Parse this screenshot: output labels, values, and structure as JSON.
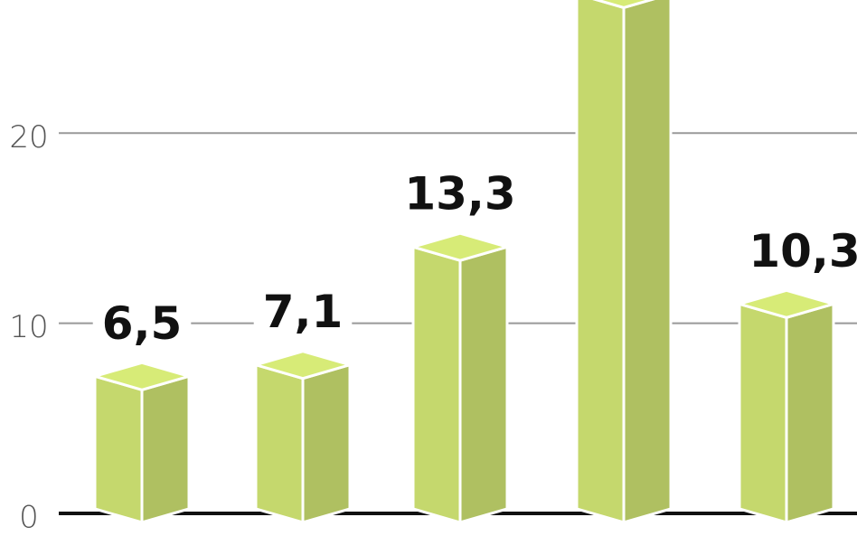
{
  "chart_data": {
    "type": "bar3d",
    "values": [
      6.5,
      7.1,
      13.3,
      26.6,
      10.3
    ],
    "value_labels": [
      "6,5",
      "7,1",
      "13,3",
      null,
      "10,3"
    ],
    "color": "#c5d86d",
    "ylim": [
      0,
      27
    ],
    "yticks": [
      0,
      10,
      20
    ],
    "grid": true
  }
}
